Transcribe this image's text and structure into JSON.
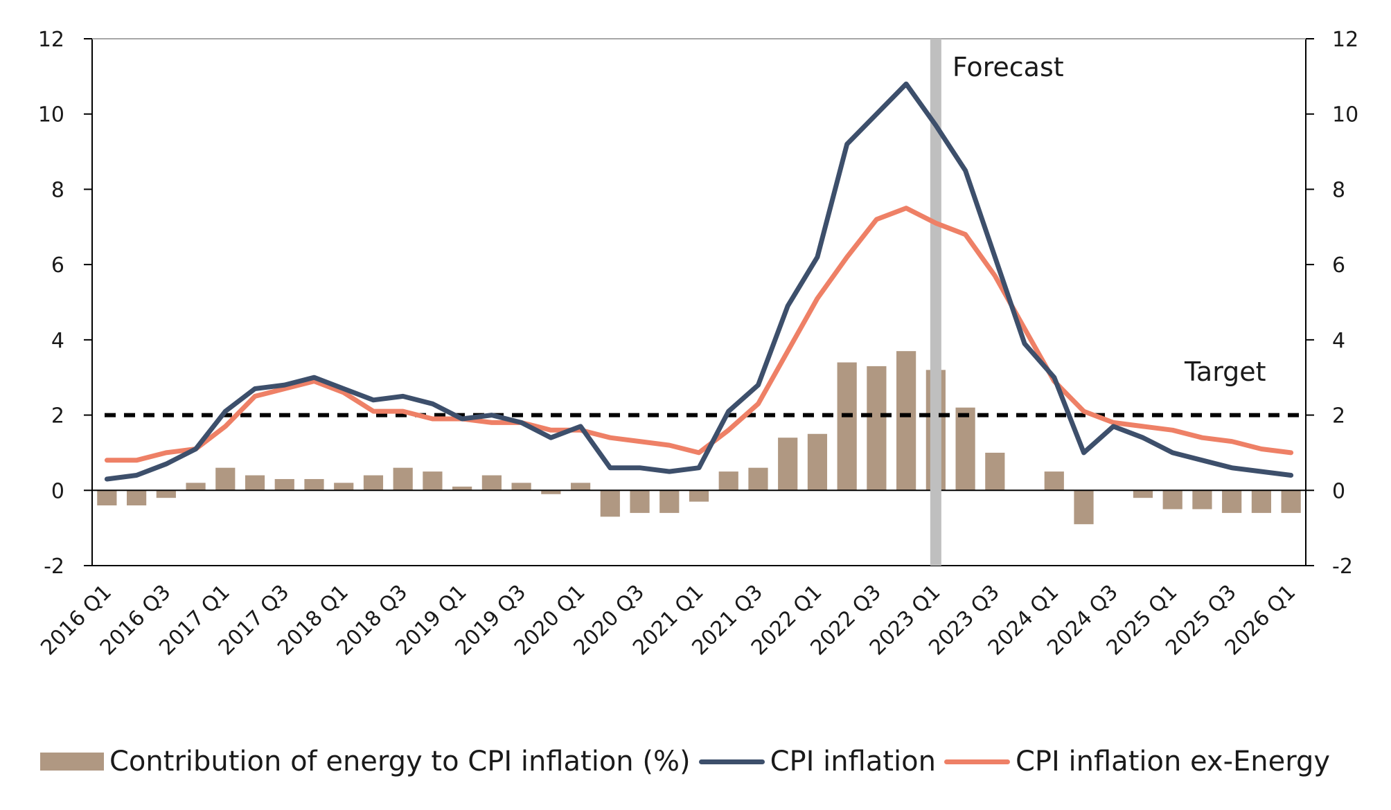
{
  "chart_data": {
    "type": "bar+line",
    "title": "",
    "xlabel": "",
    "ylabel": "",
    "ylim": [
      -2,
      12
    ],
    "yticks": [
      -2,
      0,
      2,
      4,
      6,
      8,
      10,
      12
    ],
    "y2lim": [
      -2,
      12
    ],
    "grid": false,
    "legend_position": "bottom",
    "quarters": [
      "2016 Q1",
      "2016 Q2",
      "2016 Q3",
      "2016 Q4",
      "2017 Q1",
      "2017 Q2",
      "2017 Q3",
      "2017 Q4",
      "2018 Q1",
      "2018 Q2",
      "2018 Q3",
      "2018 Q4",
      "2019 Q1",
      "2019 Q2",
      "2019 Q3",
      "2019 Q4",
      "2020 Q1",
      "2020 Q2",
      "2020 Q3",
      "2020 Q4",
      "2021 Q1",
      "2021 Q2",
      "2021 Q3",
      "2021 Q4",
      "2022 Q1",
      "2022 Q2",
      "2022 Q3",
      "2022 Q4",
      "2023 Q1",
      "2023 Q2",
      "2023 Q3",
      "2023 Q4",
      "2024 Q1",
      "2024 Q2",
      "2024 Q3",
      "2024 Q4",
      "2025 Q1",
      "2025 Q2",
      "2025 Q3",
      "2025 Q4",
      "2026 Q1"
    ],
    "tick_labels": [
      "2016 Q1",
      "2016 Q3",
      "2017 Q1",
      "2017 Q3",
      "2018 Q1",
      "2018 Q3",
      "2019 Q1",
      "2019 Q3",
      "2020 Q1",
      "2020 Q3",
      "2021 Q1",
      "2021 Q3",
      "2022 Q1",
      "2022 Q3",
      "2023 Q1",
      "2023 Q3",
      "2024 Q1",
      "2024 Q3",
      "2025 Q1",
      "2025 Q3",
      "2026 Q1"
    ],
    "series": [
      {
        "name": "Contribution of energy to CPI inflation (%)",
        "kind": "bar",
        "color": "#b09882",
        "values": [
          -0.4,
          -0.4,
          -0.2,
          0.2,
          0.6,
          0.4,
          0.3,
          0.3,
          0.2,
          0.4,
          0.6,
          0.5,
          0.1,
          0.4,
          0.2,
          -0.1,
          0.2,
          -0.7,
          -0.6,
          -0.6,
          -0.3,
          0.5,
          0.6,
          1.4,
          1.5,
          3.4,
          3.3,
          3.7,
          3.2,
          2.2,
          1.0,
          0.0,
          0.5,
          -0.9,
          0.0,
          -0.2,
          -0.5,
          -0.5,
          -0.6,
          -0.6,
          -0.6
        ]
      },
      {
        "name": "CPI inflation",
        "kind": "line",
        "color": "#3d4f6b",
        "values": [
          0.3,
          0.4,
          0.7,
          1.1,
          2.1,
          2.7,
          2.8,
          3.0,
          2.7,
          2.4,
          2.5,
          2.3,
          1.9,
          2.0,
          1.8,
          1.4,
          1.7,
          0.6,
          0.6,
          0.5,
          0.6,
          2.1,
          2.8,
          4.9,
          6.2,
          9.2,
          10.0,
          10.8,
          9.7,
          8.5,
          6.2,
          3.9,
          3.0,
          1.0,
          1.7,
          1.4,
          1.0,
          0.8,
          0.6,
          0.5,
          0.4
        ]
      },
      {
        "name": "CPI inflation ex-Energy",
        "kind": "line",
        "color": "#ee8066",
        "values": [
          0.8,
          0.8,
          1.0,
          1.1,
          1.7,
          2.5,
          2.7,
          2.9,
          2.6,
          2.1,
          2.1,
          1.9,
          1.9,
          1.8,
          1.8,
          1.6,
          1.6,
          1.4,
          1.3,
          1.2,
          1.0,
          1.6,
          2.3,
          3.7,
          5.1,
          6.2,
          7.2,
          7.5,
          7.1,
          6.8,
          5.7,
          4.3,
          2.9,
          2.1,
          1.8,
          1.7,
          1.6,
          1.4,
          1.3,
          1.1,
          1.0
        ]
      }
    ],
    "target": {
      "label": "Target",
      "value": 2,
      "color": "#000000"
    },
    "forecast": {
      "label": "Forecast",
      "at": "2023 Q1",
      "color": "#bfbfbf"
    }
  }
}
